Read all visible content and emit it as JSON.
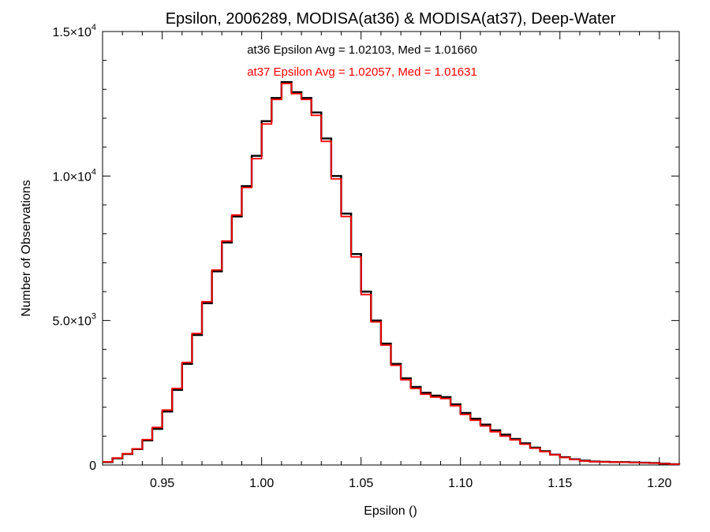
{
  "chart_data": {
    "type": "line",
    "title": "Epsilon, 2006289, MODISA(at36) & MODISA(at37), Deep-Water",
    "xlabel": "Epsilon ()",
    "ylabel": "Number of Observations",
    "xlim": [
      0.92,
      1.21
    ],
    "ylim": [
      0,
      15000
    ],
    "x_ticks": [
      {
        "value": 0.95,
        "label": "0.95"
      },
      {
        "value": 1.0,
        "label": "1.00"
      },
      {
        "value": 1.05,
        "label": "1.05"
      },
      {
        "value": 1.1,
        "label": "1.10"
      },
      {
        "value": 1.15,
        "label": "1.15"
      },
      {
        "value": 1.2,
        "label": "1.20"
      }
    ],
    "y_ticks": [
      {
        "value": 0,
        "label": "0"
      },
      {
        "value": 5000,
        "label": "5.0×10",
        "exp": "3"
      },
      {
        "value": 10000,
        "label": "1.0×10",
        "exp": "4"
      },
      {
        "value": 15000,
        "label": "1.5×10",
        "exp": "4"
      }
    ],
    "annotations": [
      {
        "text": "at36 Epsilon Avg = 1.02103, Med = 1.01660",
        "color": "#000000"
      },
      {
        "text": "at37 Epsilon Avg = 1.02057, Med = 1.01631",
        "color": "#ff0000"
      }
    ],
    "grid": false,
    "series": [
      {
        "name": "at36",
        "color": "#000000",
        "x": [
          0.92,
          0.925,
          0.93,
          0.935,
          0.94,
          0.945,
          0.95,
          0.955,
          0.96,
          0.965,
          0.97,
          0.975,
          0.98,
          0.985,
          0.99,
          0.995,
          1.0,
          1.005,
          1.01,
          1.015,
          1.02,
          1.025,
          1.03,
          1.035,
          1.04,
          1.045,
          1.05,
          1.055,
          1.06,
          1.065,
          1.07,
          1.075,
          1.08,
          1.085,
          1.09,
          1.095,
          1.1,
          1.105,
          1.11,
          1.115,
          1.12,
          1.125,
          1.13,
          1.135,
          1.14,
          1.145,
          1.15,
          1.155,
          1.16,
          1.165,
          1.17,
          1.175,
          1.18,
          1.185,
          1.19,
          1.195,
          1.2,
          1.205,
          1.21
        ],
        "values": [
          100,
          230,
          380,
          550,
          850,
          1250,
          1850,
          2600,
          3500,
          4500,
          5600,
          6700,
          7700,
          8600,
          9650,
          10700,
          11900,
          12700,
          13250,
          12900,
          12700,
          12200,
          11300,
          10000,
          8700,
          7300,
          6000,
          5000,
          4200,
          3500,
          3000,
          2700,
          2500,
          2400,
          2350,
          2100,
          1800,
          1600,
          1400,
          1200,
          1050,
          900,
          750,
          600,
          480,
          360,
          270,
          200,
          150,
          120,
          110,
          100,
          100,
          90,
          80,
          70,
          50,
          30,
          20
        ]
      },
      {
        "name": "at37",
        "color": "#ff0000",
        "x": [
          0.92,
          0.925,
          0.93,
          0.935,
          0.94,
          0.945,
          0.95,
          0.955,
          0.96,
          0.965,
          0.97,
          0.975,
          0.98,
          0.985,
          0.99,
          0.995,
          1.0,
          1.005,
          1.01,
          1.015,
          1.02,
          1.025,
          1.03,
          1.035,
          1.04,
          1.045,
          1.05,
          1.055,
          1.06,
          1.065,
          1.07,
          1.075,
          1.08,
          1.085,
          1.09,
          1.095,
          1.1,
          1.105,
          1.11,
          1.115,
          1.12,
          1.125,
          1.13,
          1.135,
          1.14,
          1.145,
          1.15,
          1.155,
          1.16,
          1.165,
          1.17,
          1.175,
          1.18,
          1.185,
          1.19,
          1.195,
          1.2,
          1.205,
          1.21
        ],
        "values": [
          110,
          240,
          390,
          560,
          880,
          1300,
          1900,
          2650,
          3550,
          4550,
          5650,
          6750,
          7750,
          8650,
          9600,
          10600,
          11800,
          12650,
          13200,
          12850,
          12650,
          12100,
          11200,
          9900,
          8600,
          7200,
          5900,
          4950,
          4150,
          3450,
          2950,
          2650,
          2450,
          2350,
          2300,
          2050,
          1750,
          1550,
          1350,
          1150,
          1000,
          870,
          720,
          580,
          460,
          350,
          260,
          190,
          140,
          115,
          105,
          100,
          95,
          85,
          75,
          65,
          45,
          28,
          18
        ]
      }
    ]
  }
}
